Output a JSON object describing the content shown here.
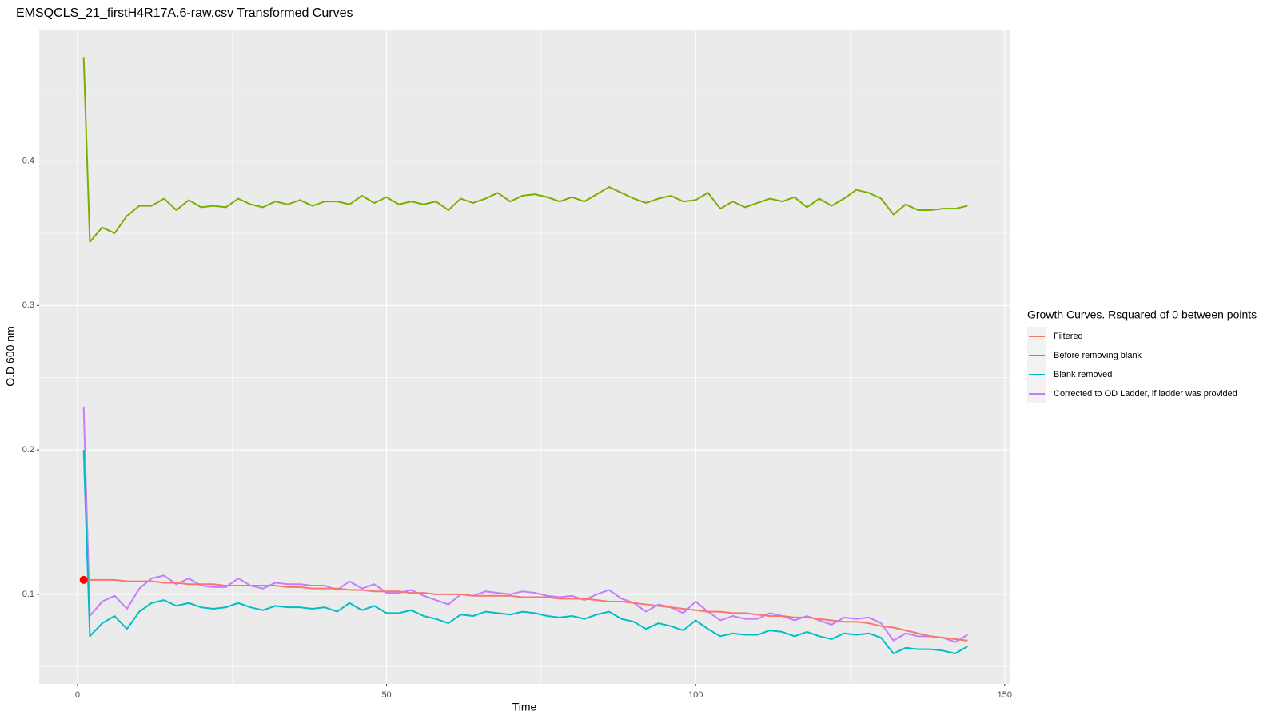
{
  "chart_data": {
    "type": "line",
    "title": "EMSQCLS_21_firstH4R17A.6-raw.csv Transformed Curves",
    "x_label": "Time",
    "y_label": "O.D 600 nm",
    "legend_title": "Growth Curves. Rsquared of 0 between points",
    "legend_position": "right",
    "grid": true,
    "xlim": [
      -6.2,
      150.8
    ],
    "xticks": [
      0,
      50,
      100,
      150
    ],
    "x_minor_ticks": [
      25,
      75,
      125
    ],
    "ylim": [
      0.038,
      0.491
    ],
    "yticks": [
      0.1,
      0.2,
      0.3,
      0.4
    ],
    "y_minor_ticks": [
      0.05,
      0.15,
      0.25,
      0.35,
      0.45
    ],
    "x": [
      1,
      2,
      4,
      6,
      8,
      10,
      12,
      14,
      16,
      18,
      20,
      22,
      24,
      26,
      28,
      30,
      32,
      34,
      36,
      38,
      40,
      42,
      44,
      46,
      48,
      50,
      52,
      54,
      56,
      58,
      60,
      62,
      64,
      66,
      68,
      70,
      72,
      74,
      76,
      78,
      80,
      82,
      84,
      86,
      88,
      90,
      92,
      94,
      96,
      98,
      100,
      102,
      104,
      106,
      108,
      110,
      112,
      114,
      116,
      118,
      120,
      122,
      124,
      126,
      128,
      130,
      132,
      134,
      136,
      138,
      140,
      142,
      144
    ],
    "series": [
      {
        "name": "Filtered",
        "color": "#F8766D",
        "values": [
          0.11,
          0.11,
          0.11,
          0.11,
          0.109,
          0.109,
          0.109,
          0.108,
          0.108,
          0.107,
          0.107,
          0.107,
          0.106,
          0.106,
          0.106,
          0.106,
          0.106,
          0.105,
          0.105,
          0.104,
          0.104,
          0.104,
          0.103,
          0.103,
          0.102,
          0.102,
          0.102,
          0.101,
          0.101,
          0.1,
          0.1,
          0.1,
          0.099,
          0.099,
          0.099,
          0.099,
          0.098,
          0.098,
          0.098,
          0.097,
          0.097,
          0.097,
          0.096,
          0.095,
          0.095,
          0.094,
          0.093,
          0.092,
          0.091,
          0.09,
          0.089,
          0.088,
          0.088,
          0.087,
          0.087,
          0.086,
          0.085,
          0.085,
          0.084,
          0.084,
          0.083,
          0.082,
          0.081,
          0.081,
          0.08,
          0.078,
          0.077,
          0.075,
          0.073,
          0.071,
          0.07,
          0.069,
          0.068
        ]
      },
      {
        "name": "Before removing blank",
        "color": "#7CAE00",
        "values": [
          0.472,
          0.344,
          0.354,
          0.35,
          0.362,
          0.369,
          0.369,
          0.374,
          0.366,
          0.373,
          0.368,
          0.369,
          0.368,
          0.374,
          0.37,
          0.368,
          0.372,
          0.37,
          0.373,
          0.369,
          0.372,
          0.372,
          0.37,
          0.376,
          0.371,
          0.375,
          0.37,
          0.372,
          0.37,
          0.372,
          0.366,
          0.374,
          0.371,
          0.374,
          0.378,
          0.372,
          0.376,
          0.377,
          0.375,
          0.372,
          0.375,
          0.372,
          0.377,
          0.382,
          0.378,
          0.374,
          0.371,
          0.374,
          0.376,
          0.372,
          0.373,
          0.378,
          0.367,
          0.372,
          0.368,
          0.371,
          0.374,
          0.372,
          0.375,
          0.368,
          0.374,
          0.369,
          0.374,
          0.38,
          0.378,
          0.374,
          0.363,
          0.37,
          0.366,
          0.366,
          0.367,
          0.367,
          0.369
        ]
      },
      {
        "name": "Blank removed",
        "color": "#00BFC4",
        "values": [
          0.2,
          0.071,
          0.08,
          0.085,
          0.076,
          0.088,
          0.094,
          0.096,
          0.092,
          0.094,
          0.091,
          0.09,
          0.091,
          0.094,
          0.091,
          0.089,
          0.092,
          0.091,
          0.091,
          0.09,
          0.091,
          0.088,
          0.094,
          0.089,
          0.092,
          0.087,
          0.087,
          0.089,
          0.085,
          0.083,
          0.08,
          0.086,
          0.085,
          0.088,
          0.087,
          0.086,
          0.088,
          0.087,
          0.085,
          0.084,
          0.085,
          0.083,
          0.086,
          0.088,
          0.083,
          0.081,
          0.076,
          0.08,
          0.078,
          0.075,
          0.082,
          0.076,
          0.071,
          0.073,
          0.072,
          0.072,
          0.075,
          0.074,
          0.071,
          0.074,
          0.071,
          0.069,
          0.073,
          0.072,
          0.073,
          0.07,
          0.059,
          0.063,
          0.062,
          0.062,
          0.061,
          0.059,
          0.064
        ]
      },
      {
        "name": "Corrected to OD Ladder, if ladder was provided",
        "color": "#C77CFF",
        "values": [
          0.23,
          0.085,
          0.095,
          0.099,
          0.09,
          0.104,
          0.111,
          0.113,
          0.107,
          0.111,
          0.106,
          0.105,
          0.105,
          0.111,
          0.106,
          0.104,
          0.108,
          0.107,
          0.107,
          0.106,
          0.106,
          0.103,
          0.109,
          0.104,
          0.107,
          0.101,
          0.101,
          0.103,
          0.099,
          0.096,
          0.093,
          0.1,
          0.099,
          0.102,
          0.101,
          0.1,
          0.102,
          0.101,
          0.099,
          0.098,
          0.099,
          0.096,
          0.1,
          0.103,
          0.097,
          0.094,
          0.088,
          0.093,
          0.091,
          0.087,
          0.095,
          0.088,
          0.082,
          0.085,
          0.083,
          0.083,
          0.087,
          0.085,
          0.082,
          0.085,
          0.082,
          0.079,
          0.084,
          0.083,
          0.084,
          0.08,
          0.068,
          0.073,
          0.071,
          0.071,
          0.07,
          0.067,
          0.072
        ]
      }
    ],
    "marker": {
      "x": 1,
      "y": 0.11,
      "color": "#FF0000"
    }
  }
}
